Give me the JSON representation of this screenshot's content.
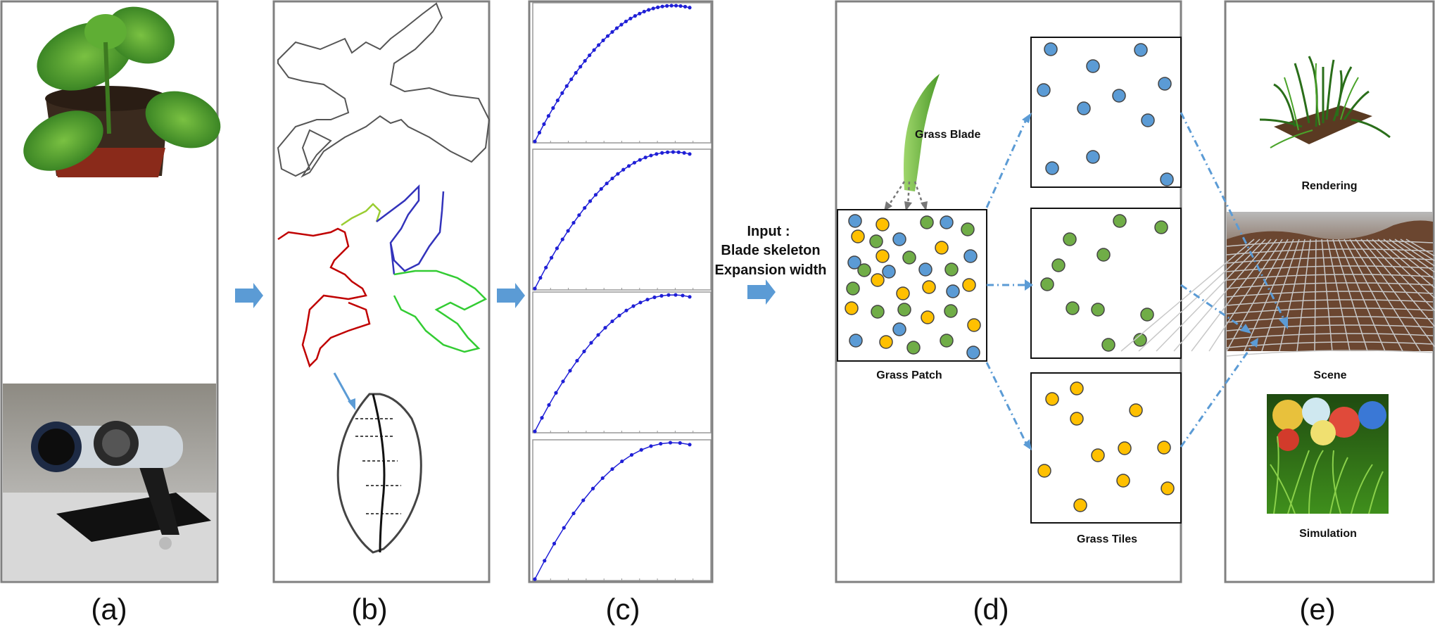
{
  "panels": {
    "a": {
      "label": "(a)"
    },
    "b": {
      "label": "(b)"
    },
    "c": {
      "label": "(c)"
    },
    "d": {
      "label": "(d)"
    },
    "e": {
      "label": "(e)"
    }
  },
  "input_text": {
    "line1": "Input :",
    "line2": "Blade skeleton",
    "line3": "Expansion width"
  },
  "d_labels": {
    "grass_blade": "Grass Blade",
    "grass_patch": "Grass Patch",
    "grass_tiles": "Grass Tiles"
  },
  "e_labels": {
    "rendering": "Rendering",
    "scene": "Scene",
    "simulation": "Simulation"
  },
  "colors": {
    "panel_border": "#808080",
    "arrow": "#5b9bd5",
    "blue_dot": "#5b9bd5",
    "green_dot": "#70ad47",
    "orange_dot": "#ffc000",
    "curve": "#1f1fd6"
  }
}
